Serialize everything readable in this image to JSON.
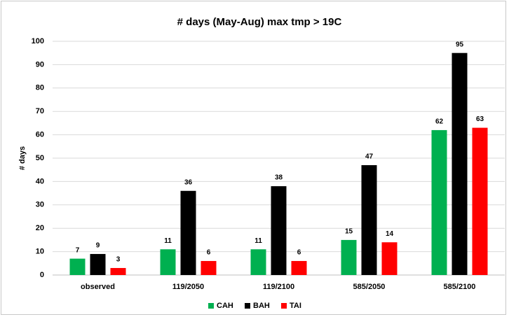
{
  "chart_data": {
    "type": "bar",
    "title": "# days (May-Aug) max tmp > 19C",
    "y_label": "# days",
    "categories": [
      "observed",
      "119/2050",
      "119/2100",
      "585/2050",
      "585/2100"
    ],
    "series": [
      {
        "name": "CAH",
        "color": "#00b050",
        "values": [
          7,
          11,
          11,
          15,
          62
        ]
      },
      {
        "name": "BAH",
        "color": "#000000",
        "values": [
          9,
          36,
          38,
          47,
          95
        ]
      },
      {
        "name": "TAI",
        "color": "#ff0000",
        "values": [
          3,
          6,
          6,
          14,
          63
        ]
      }
    ],
    "ylim": [
      0,
      100
    ],
    "yticks": [
      0,
      10,
      20,
      30,
      40,
      50,
      60,
      70,
      80,
      90,
      100
    ],
    "grid": true,
    "legend": "bottom"
  }
}
